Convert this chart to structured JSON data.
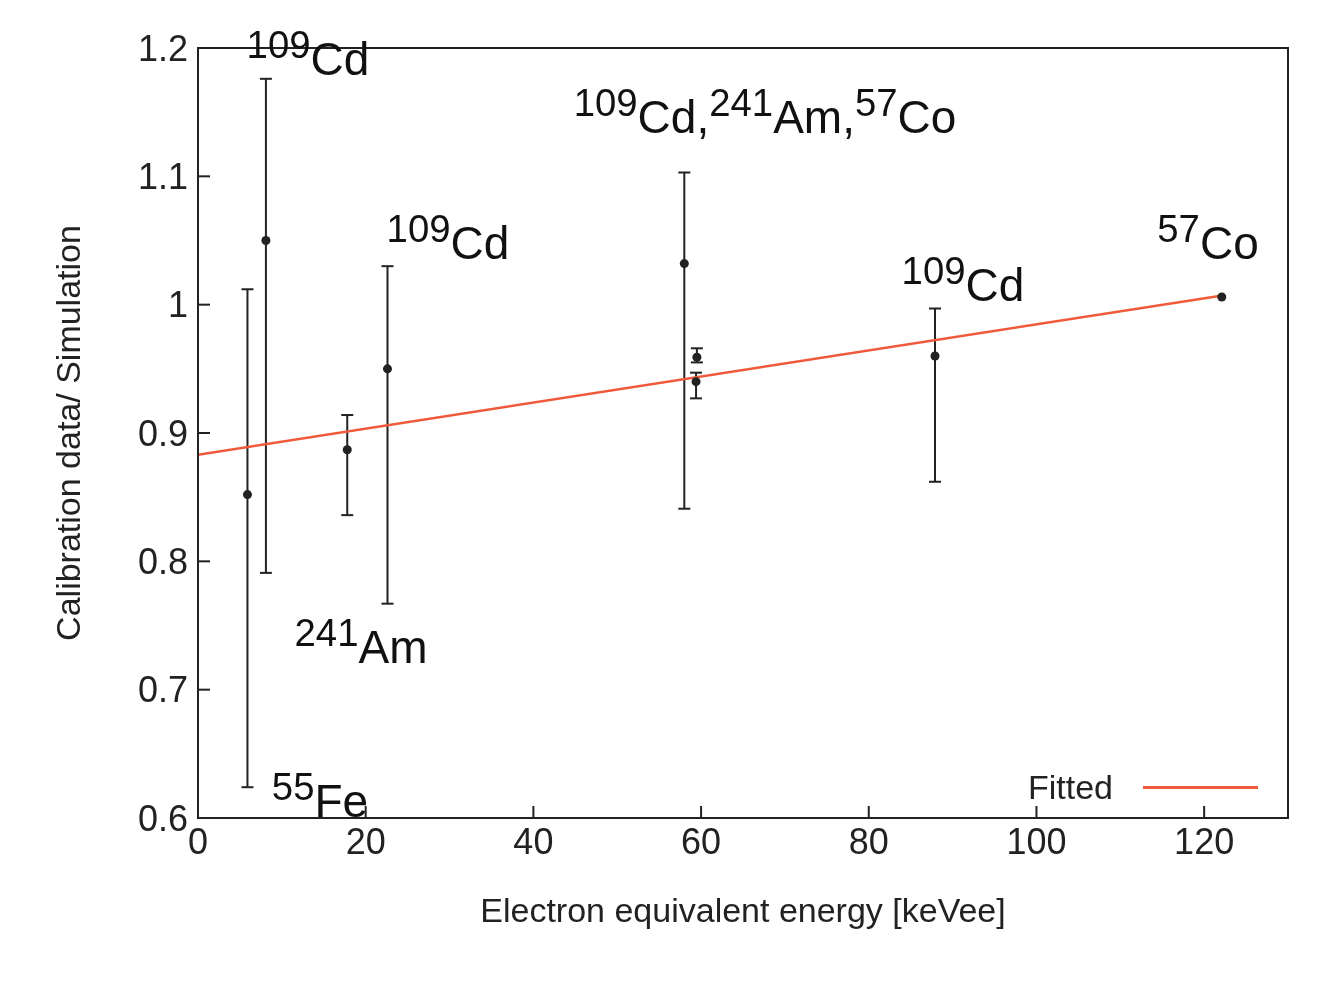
{
  "chart_data": {
    "type": "scatter",
    "xlabel": "Electron equivalent energy [keVee]",
    "ylabel": "Calibration data/ Simulation",
    "xlim": [
      0,
      130
    ],
    "xticks": [
      0,
      20,
      40,
      60,
      80,
      100,
      120
    ],
    "ylim": [
      0.6,
      1.2
    ],
    "yticks": [
      0.6,
      0.7,
      0.8,
      0.9,
      1,
      1.1,
      1.2
    ],
    "grid": false,
    "legend": "bottom right",
    "marker": "circle",
    "series": [
      {
        "type": "scatter",
        "color": "#222222",
        "x": [
          5.9,
          8.1,
          17.8,
          22.6,
          58.0,
          59.5,
          59.4,
          87.9,
          122.1
        ],
        "values": [
          0.852,
          1.05,
          0.887,
          0.95,
          1.032,
          0.959,
          0.94,
          0.96,
          1.006
        ],
        "errors": [
          [
            0.624,
            1.012
          ],
          [
            0.791,
            1.176
          ],
          [
            0.836,
            0.914
          ],
          [
            0.767,
            1.03
          ],
          [
            0.841,
            1.103
          ],
          [
            0.955,
            0.966
          ],
          [
            0.927,
            0.947
          ],
          [
            0.862,
            0.997
          ],
          null
        ]
      },
      {
        "type": "line",
        "name": "Fitted",
        "color": "#f05a3a",
        "x": [
          0,
          122
        ],
        "values": [
          0.883,
          1.007
        ],
        "marker": "none"
      }
    ],
    "annotations": [
      "$^{109}$Cd",
      "$^{109}$Cd,$^{241}$Am,$^{57}$Co",
      "$^{109}$Cd",
      "$^{57}$Co",
      "$^{109}$Cd",
      "$^{241}$Am",
      "$^{55}$Fe"
    ]
  }
}
